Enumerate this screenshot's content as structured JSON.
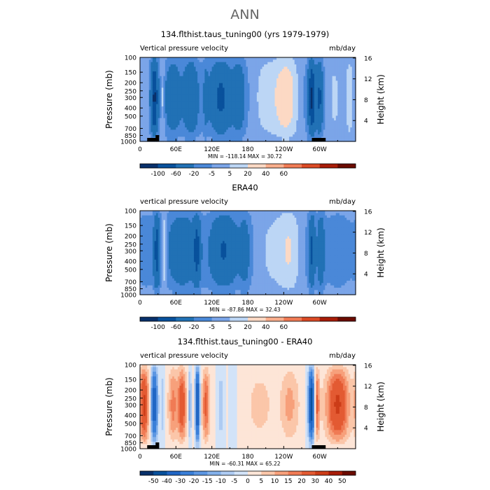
{
  "page_title": "ANN",
  "chart_data": [
    {
      "type": "heatmap",
      "title": "134.flthist.taus_tuning00 (yrs 1979-1979)",
      "subtitle_left": "Vertical pressure velocity",
      "subtitle_right": "mb/day",
      "ylabel": "Pressure (mb)",
      "ylabel_right": "Height (km)",
      "xticks": [
        "0",
        "60E",
        "120E",
        "180",
        "120W",
        "60W"
      ],
      "yticks": [
        "100",
        "150",
        "200",
        "250",
        "300",
        "400",
        "500",
        "700",
        "850",
        "1000"
      ],
      "yticks_right": [
        "16",
        "12",
        "8",
        "4"
      ],
      "stats": "MIN = -118.14   MAX =  30.72",
      "colorbar_labels": [
        "-100",
        "-60",
        "-20",
        "-5",
        "5",
        "20",
        "40",
        "60"
      ],
      "features": [
        {
          "lon": 8,
          "width": 12,
          "value": 12
        },
        {
          "lon": 24,
          "width": 8,
          "value": -100
        },
        {
          "lon": 38,
          "width": 5,
          "value": 20
        },
        {
          "lon": 55,
          "width": 18,
          "value": -40
        },
        {
          "lon": 85,
          "width": 16,
          "value": -50
        },
        {
          "lon": 110,
          "width": 6,
          "value": -20
        },
        {
          "lon": 135,
          "width": 24,
          "value": -60
        },
        {
          "lon": 165,
          "width": 14,
          "value": -40
        },
        {
          "lon": 215,
          "width": 40,
          "value": 20
        },
        {
          "lon": 245,
          "width": 24,
          "value": 40
        },
        {
          "lon": 287,
          "width": 8,
          "value": -100
        },
        {
          "lon": 300,
          "width": 7,
          "value": -60
        },
        {
          "lon": 325,
          "width": 20,
          "value": 15
        },
        {
          "lon": 350,
          "width": 10,
          "value": 20
        }
      ]
    },
    {
      "type": "heatmap",
      "title": "ERA40",
      "subtitle_left": "vertical pressure velocity",
      "subtitle_right": "mb/day",
      "ylabel": "Pressure (mb)",
      "ylabel_right": "Height (km)",
      "xticks": [
        "0",
        "60E",
        "120E",
        "180",
        "120W",
        "60W"
      ],
      "yticks": [
        "100",
        "150",
        "200",
        "250",
        "300",
        "400",
        "500",
        "700",
        "850",
        "1000"
      ],
      "yticks_right": [
        "16",
        "12",
        "8",
        "4"
      ],
      "stats": "MIN = -87.86   MAX =  32.43",
      "colorbar_labels": [
        "-100",
        "-60",
        "-20",
        "-5",
        "5",
        "20",
        "40",
        "60"
      ],
      "features": [
        {
          "lon": 10,
          "width": 14,
          "value": -8
        },
        {
          "lon": 28,
          "width": 7,
          "value": -70
        },
        {
          "lon": 40,
          "width": 6,
          "value": 25
        },
        {
          "lon": 70,
          "width": 30,
          "value": -45
        },
        {
          "lon": 95,
          "width": 8,
          "value": -60
        },
        {
          "lon": 140,
          "width": 30,
          "value": -55
        },
        {
          "lon": 175,
          "width": 12,
          "value": -30
        },
        {
          "lon": 220,
          "width": 40,
          "value": 15
        },
        {
          "lon": 250,
          "width": 24,
          "value": 25
        },
        {
          "lon": 287,
          "width": 7,
          "value": -60
        },
        {
          "lon": 302,
          "width": 8,
          "value": -45
        },
        {
          "lon": 330,
          "width": 20,
          "value": -10
        }
      ]
    },
    {
      "type": "heatmap",
      "title": "134.flthist.taus_tuning00 - ERA40",
      "subtitle_left": "vertical pressure velocity",
      "subtitle_right": "mb/day",
      "ylabel": "Pressure (mb)",
      "ylabel_right": "Height (km)",
      "xticks": [
        "0",
        "60E",
        "120E",
        "180",
        "120W",
        "60W"
      ],
      "yticks": [
        "100",
        "150",
        "200",
        "250",
        "300",
        "400",
        "500",
        "700",
        "850",
        "1000"
      ],
      "yticks_right": [
        "16",
        "12",
        "8",
        "4"
      ],
      "stats": "MIN = -60.31   MAX =  65.22",
      "colorbar_labels": [
        "-50",
        "-40",
        "-30",
        "-20",
        "-15",
        "-10",
        "-5",
        "0",
        "5",
        "10",
        "15",
        "20",
        "30",
        "40",
        "50"
      ],
      "features": [
        {
          "lon": 7,
          "width": 10,
          "value": 30
        },
        {
          "lon": 24,
          "width": 8,
          "value": -40
        },
        {
          "lon": 38,
          "width": 5,
          "value": -10
        },
        {
          "lon": 55,
          "width": 10,
          "value": 15
        },
        {
          "lon": 70,
          "width": 10,
          "value": 25
        },
        {
          "lon": 83,
          "width": 5,
          "value": -15
        },
        {
          "lon": 96,
          "width": 5,
          "value": -50
        },
        {
          "lon": 110,
          "width": 8,
          "value": 20
        },
        {
          "lon": 135,
          "width": 10,
          "value": -10
        },
        {
          "lon": 155,
          "width": 10,
          "value": -5
        },
        {
          "lon": 200,
          "width": 30,
          "value": 5
        },
        {
          "lon": 250,
          "width": 20,
          "value": 10
        },
        {
          "lon": 286,
          "width": 7,
          "value": -50
        },
        {
          "lon": 296,
          "width": 5,
          "value": 20
        },
        {
          "lon": 330,
          "width": 25,
          "value": 30
        }
      ]
    }
  ],
  "colors": {
    "scale_11": [
      "#08306b",
      "#08519c",
      "#2171b5",
      "#4a88d8",
      "#7ba5e8",
      "#bcd6f5",
      "#fcd9c4",
      "#f9ae8c",
      "#f07b55",
      "#db4a25",
      "#a81c08",
      "#6b0b00"
    ],
    "scale_16": [
      "#08306b",
      "#08519c",
      "#2166c4",
      "#3a7fd8",
      "#5c96e2",
      "#83b0ea",
      "#aecbf2",
      "#d2e3f8",
      "#fde5d7",
      "#fbc6a9",
      "#f7a07b",
      "#f07b55",
      "#e35a32",
      "#cc3d18",
      "#a81c08",
      "#6b0b00"
    ]
  }
}
